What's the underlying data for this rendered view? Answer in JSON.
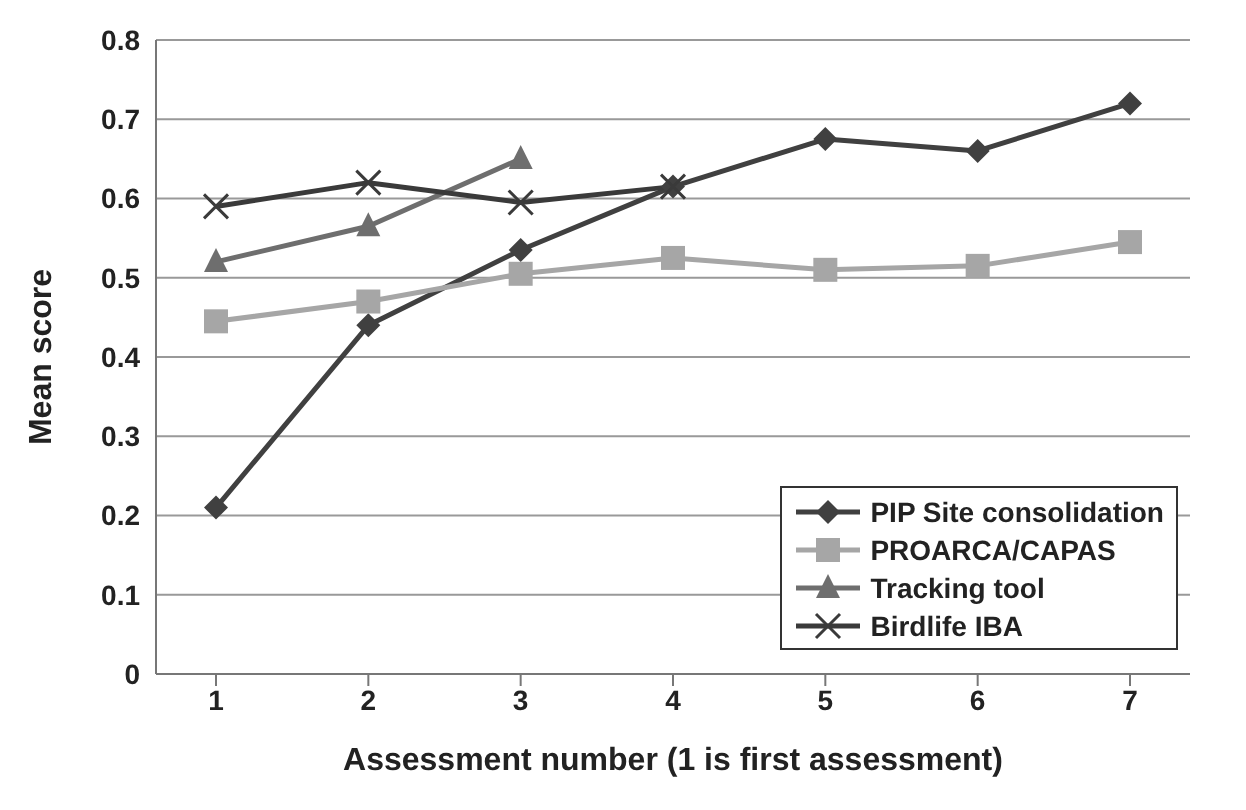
{
  "chart_data": {
    "type": "line",
    "xlabel": "Assessment number (1 is first assessment)",
    "ylabel": "Mean score",
    "categories": [
      "1",
      "2",
      "3",
      "4",
      "5",
      "6",
      "7"
    ],
    "series": [
      {
        "name": "PIP Site consolidation",
        "color": "#404040",
        "marker": "diamond",
        "values": [
          0.21,
          0.44,
          0.535,
          0.615,
          0.675,
          0.66,
          0.72
        ]
      },
      {
        "name": "PROARCA/CAPAS",
        "color": "#a6a6a6",
        "marker": "square",
        "values": [
          0.445,
          0.47,
          0.505,
          0.525,
          0.51,
          0.515,
          0.545
        ]
      },
      {
        "name": "Tracking tool",
        "color": "#6e6e6e",
        "marker": "triangle",
        "values": [
          0.52,
          0.565,
          0.65,
          null,
          null,
          null,
          null
        ]
      },
      {
        "name": "Birdlife IBA",
        "color": "#3a3a3a",
        "marker": "cross",
        "values": [
          0.59,
          0.62,
          0.595,
          0.615,
          null,
          null,
          null
        ]
      }
    ],
    "ylim": [
      0,
      0.8
    ],
    "yticks": [
      0,
      0.1,
      0.2,
      0.3,
      0.4,
      0.5,
      0.6,
      0.7,
      0.8
    ],
    "grid": "y",
    "legend": "bottom right",
    "line_style": "solid"
  }
}
